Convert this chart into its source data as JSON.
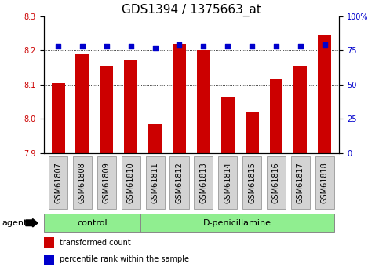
{
  "title": "GDS1394 / 1375663_at",
  "samples": [
    "GSM61807",
    "GSM61808",
    "GSM61809",
    "GSM61810",
    "GSM61811",
    "GSM61812",
    "GSM61813",
    "GSM61814",
    "GSM61815",
    "GSM61816",
    "GSM61817",
    "GSM61818"
  ],
  "bar_values": [
    8.105,
    8.19,
    8.155,
    8.17,
    7.985,
    8.22,
    8.2,
    8.065,
    8.02,
    8.115,
    8.155,
    8.245
  ],
  "percentile_values": [
    78,
    78,
    78,
    78,
    77,
    79,
    78,
    78,
    78,
    78,
    78,
    79
  ],
  "ymin": 7.9,
  "ymax": 8.3,
  "yticks": [
    7.9,
    8.0,
    8.1,
    8.2,
    8.3
  ],
  "right_yticks": [
    0,
    25,
    50,
    75,
    100
  ],
  "right_ytick_labels": [
    "0",
    "25",
    "50",
    "75",
    "100%"
  ],
  "bar_color": "#cc0000",
  "dot_color": "#0000cc",
  "n_control": 4,
  "n_treatment": 8,
  "control_label": "control",
  "treatment_label": "D-penicillamine",
  "agent_label": "agent",
  "legend_bar_label": "transformed count",
  "legend_dot_label": "percentile rank within the sample",
  "title_fontsize": 11,
  "tick_fontsize": 7,
  "label_fontsize": 8,
  "bar_width": 0.55,
  "tick_label_color_left": "#cc0000",
  "tick_label_color_right": "#0000cc",
  "gridline_color": "#000000",
  "gridline_vals": [
    8.0,
    8.1,
    8.2
  ],
  "agent_box_color": "#90ee90",
  "xtick_box_color": "#d3d3d3",
  "xtick_box_edge": "#888888"
}
